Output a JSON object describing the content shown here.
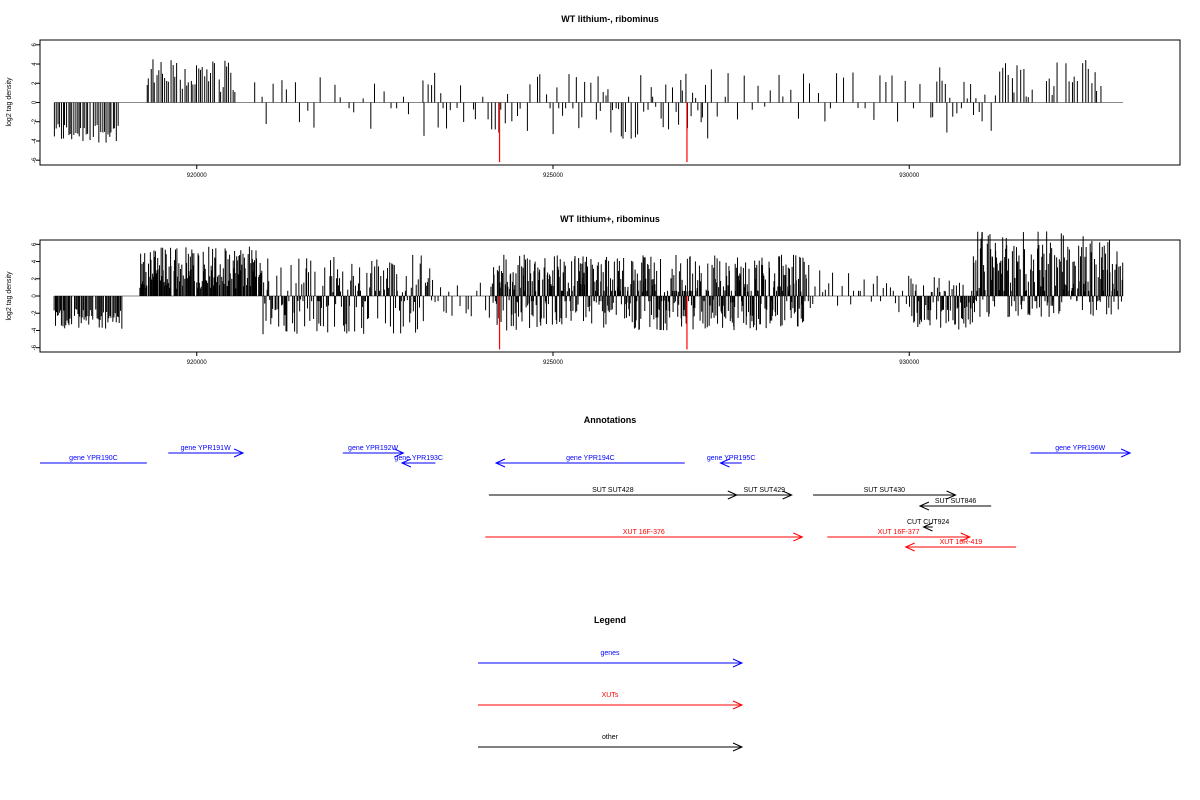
{
  "colors": {
    "gene": "#0000ff",
    "xut": "#ff0000",
    "other": "#000000"
  },
  "chart_data": [
    {
      "type": "bar",
      "title": "WT lithium-, ribominus",
      "ylabel": "log2 tag density",
      "xlim": [
        917800,
        933800
      ],
      "ylim": [
        -6.5,
        6.5
      ],
      "xticks": [
        920000,
        925000,
        930000
      ],
      "yticks": [
        -6,
        -4,
        -2,
        0,
        2,
        4,
        6
      ],
      "red_marks": [
        {
          "x": 924250,
          "y": -6.2
        },
        {
          "x": 926880,
          "y": -6.2
        }
      ],
      "series": [
        {
          "x_start": 918000,
          "x_end": 918900,
          "step": 25,
          "min": -4.2,
          "max": -2.0,
          "sign": -1
        },
        {
          "x_start": 919300,
          "x_end": 920550,
          "step": 28,
          "min": 1.0,
          "max": 4.5,
          "sign": 1
        },
        {
          "x_start": 920800,
          "x_end": 923200,
          "step": 95,
          "min": -3.0,
          "max": 3.2,
          "sign": 0
        },
        {
          "x_start": 923200,
          "x_end": 925600,
          "step": 45,
          "min": -3.5,
          "max": 3.2,
          "sign": 0
        },
        {
          "x_start": 925600,
          "x_end": 927200,
          "step": 35,
          "min": -3.8,
          "max": 3.0,
          "sign": 0
        },
        {
          "x_start": 927200,
          "x_end": 930200,
          "step": 95,
          "min": -2.5,
          "max": 3.5,
          "sign": 0
        },
        {
          "x_start": 930300,
          "x_end": 931200,
          "step": 40,
          "min": -3.2,
          "max": 4.3,
          "sign": 0
        },
        {
          "x_start": 931200,
          "x_end": 932700,
          "step": 40,
          "min": 0.5,
          "max": 4.5,
          "sign": 1
        }
      ]
    },
    {
      "type": "bar",
      "title": "WT lithium+, ribominus",
      "ylabel": "log2 tag density",
      "xlim": [
        917800,
        933800
      ],
      "ylim": [
        -6.5,
        6.5
      ],
      "xticks": [
        920000,
        925000,
        930000
      ],
      "yticks": [
        -6,
        -4,
        -2,
        0,
        2,
        4,
        6
      ],
      "red_marks": [
        {
          "x": 924250,
          "y": -6.2
        },
        {
          "x": 926880,
          "y": -6.2
        }
      ],
      "series": [
        {
          "x_start": 918000,
          "x_end": 918950,
          "step": 15,
          "min": -3.8,
          "max": -1.5,
          "sign": -1
        },
        {
          "x_start": 919200,
          "x_end": 920900,
          "step": 10,
          "min": 0.8,
          "max": 5.8,
          "sign": 1
        },
        {
          "x_start": 920900,
          "x_end": 923300,
          "step": 14,
          "min": -4.5,
          "max": 4.8,
          "sign": 0
        },
        {
          "x_start": 923300,
          "x_end": 924150,
          "step": 40,
          "min": -3.0,
          "max": 2.5,
          "sign": 0
        },
        {
          "x_start": 924150,
          "x_end": 928600,
          "step": 8,
          "min": -4.0,
          "max": 4.8,
          "sign": 0
        },
        {
          "x_start": 928600,
          "x_end": 930000,
          "step": 45,
          "min": -2.0,
          "max": 3.0,
          "sign": 0
        },
        {
          "x_start": 930000,
          "x_end": 930900,
          "step": 12,
          "min": -4.0,
          "max": 2.5,
          "sign": 0
        },
        {
          "x_start": 930900,
          "x_end": 933000,
          "step": 9,
          "min": -2.5,
          "max": 7.5,
          "sign": 0
        }
      ]
    }
  ],
  "annotations": {
    "title": "Annotations",
    "features": [
      {
        "label": "gene YPR190C",
        "x1": 917800,
        "x2": 919300,
        "row": 2,
        "type": "gene",
        "dir": "none"
      },
      {
        "label": "gene YPR191W",
        "x1": 919600,
        "x2": 920650,
        "row": 1,
        "type": "gene",
        "dir": "right"
      },
      {
        "label": "gene YPR192W",
        "x1": 922050,
        "x2": 922900,
        "row": 1,
        "type": "gene",
        "dir": "right"
      },
      {
        "label": "gene YPR193C",
        "x1": 922880,
        "x2": 923350,
        "row": 2,
        "type": "gene",
        "dir": "left"
      },
      {
        "label": "gene YPR194C",
        "x1": 924200,
        "x2": 926850,
        "row": 2,
        "type": "gene",
        "dir": "left"
      },
      {
        "label": "gene YPR195C",
        "x1": 927350,
        "x2": 927650,
        "row": 2,
        "type": "gene",
        "dir": "left"
      },
      {
        "label": "gene YPR196W",
        "x1": 931700,
        "x2": 933100,
        "row": 1,
        "type": "gene",
        "dir": "right"
      },
      {
        "label": "SUT SUT428",
        "x1": 924100,
        "x2": 927580,
        "row": 3,
        "type": "other",
        "dir": "right"
      },
      {
        "label": "SUT SUT429",
        "x1": 927580,
        "x2": 928350,
        "row": 3,
        "type": "other",
        "dir": "right"
      },
      {
        "label": "SUT SUT430",
        "x1": 928650,
        "x2": 930650,
        "row": 3,
        "type": "other",
        "dir": "right"
      },
      {
        "label": "SUT SUT846",
        "x1": 930150,
        "x2": 931150,
        "row": 4,
        "type": "other",
        "dir": "left"
      },
      {
        "label": "CUT CUT924",
        "x1": 930200,
        "x2": 930330,
        "row": 5,
        "type": "other",
        "dir": "left"
      },
      {
        "label": "XUT 16F-376",
        "x1": 924050,
        "x2": 928500,
        "row": 6,
        "type": "xut",
        "dir": "right"
      },
      {
        "label": "XUT 16F-377",
        "x1": 928850,
        "x2": 930850,
        "row": 6,
        "type": "xut",
        "dir": "right"
      },
      {
        "label": "XUT 16R-419",
        "x1": 929950,
        "x2": 931500,
        "row": 7,
        "type": "xut",
        "dir": "left"
      }
    ]
  },
  "legend": {
    "title": "Legend",
    "items": [
      {
        "label": "genes",
        "type": "gene"
      },
      {
        "label": "XUTs",
        "type": "xut"
      },
      {
        "label": "other",
        "type": "other"
      }
    ]
  }
}
